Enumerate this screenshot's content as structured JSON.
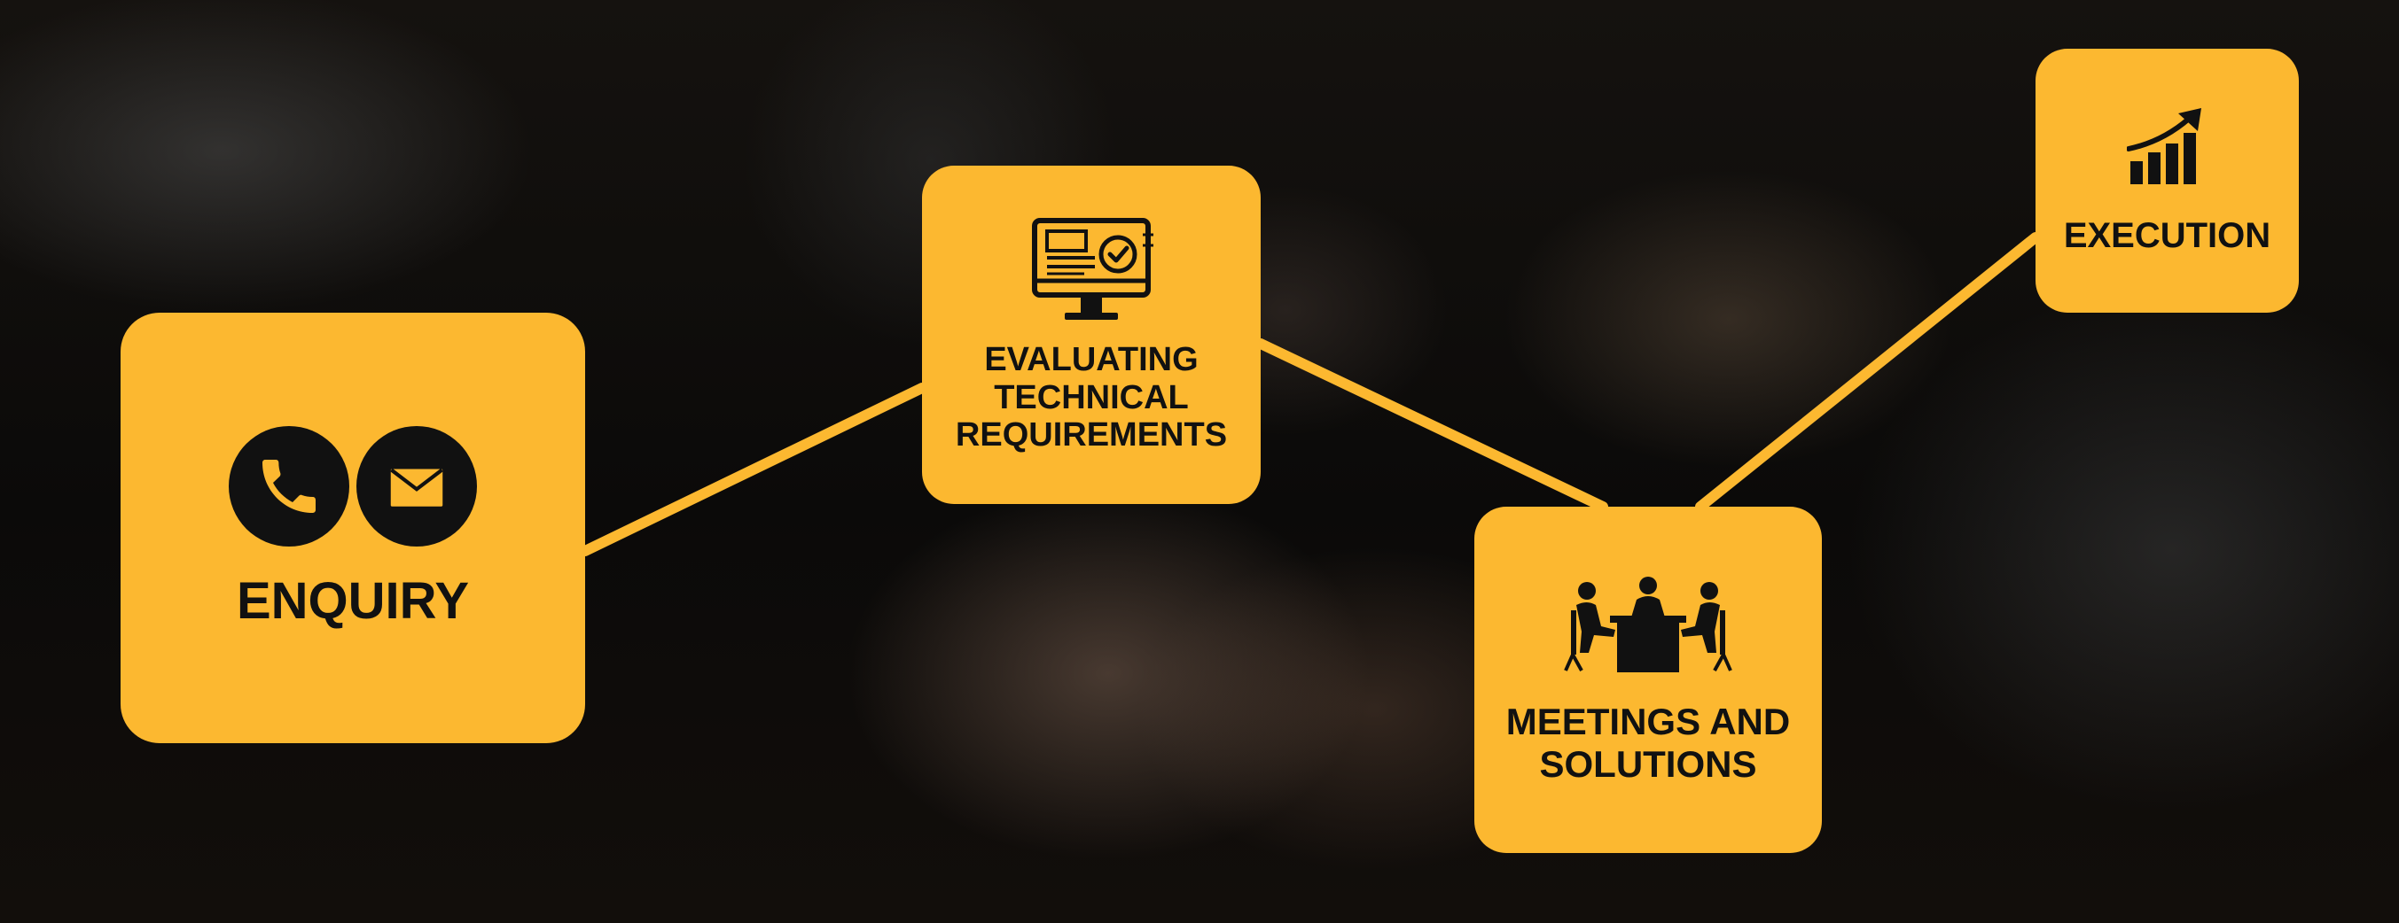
{
  "nodes": {
    "enquiry": {
      "label": "ENQUIRY"
    },
    "evaluating": {
      "label": "EVALUATING\nTECHNICAL\nREQUIREMENTS"
    },
    "meetings": {
      "label": "MEETINGS AND\nSOLUTIONS"
    },
    "execution": {
      "label": "EXECUTION"
    }
  },
  "icons": {
    "enquiry": [
      "phone-icon",
      "envelope-icon"
    ],
    "evaluating": "monitor-checkmark-icon",
    "meetings": "meeting-table-icon",
    "execution": "growth-chart-icon"
  },
  "colors": {
    "box": "#fcb830",
    "connector": "#fcb830",
    "text": "#111111"
  }
}
